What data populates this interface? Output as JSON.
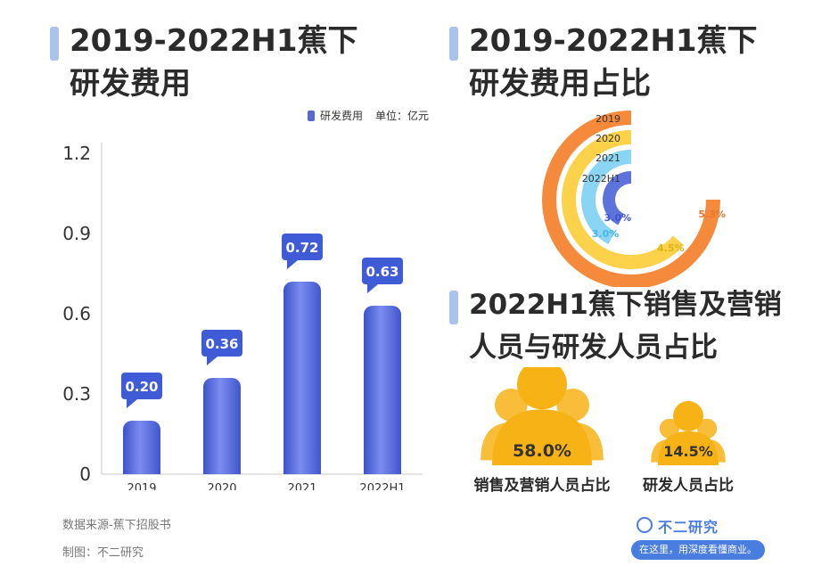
{
  "titles": {
    "left_line1": "2019-2022H1蕉下",
    "left_line2": "研发费用",
    "ring_line1": "2019-2022H1蕉下",
    "ring_line2": "研发费用占比",
    "people_line1": "2022H1蕉下销售及营销",
    "people_line2": "人员与研发人员占比"
  },
  "legend": {
    "series_name": "研发费用",
    "unit": "单位：亿元"
  },
  "bar_chart": {
    "type": "bar",
    "categories": [
      "2019",
      "2020",
      "2021",
      "2022H1"
    ],
    "series": [
      {
        "name": "研发费用",
        "values": [
          0.2,
          0.36,
          0.72,
          0.63
        ]
      }
    ],
    "data_labels": [
      "0.20",
      "0.36",
      "0.72",
      "0.63"
    ],
    "y_ticks": [
      "0",
      "0.3",
      "0.6",
      "0.9",
      "1.2"
    ],
    "ylim": [
      0,
      1.2
    ],
    "bar_color": "#5468d8",
    "label_color": "#3f5bd6"
  },
  "chart_data": [
    {
      "type": "bar",
      "categories": [
        "2019",
        "2020",
        "2021",
        "2022H1"
      ],
      "series": [
        {
          "name": "研发费用",
          "values": [
            0.2,
            0.36,
            0.72,
            0.63
          ]
        }
      ],
      "xlabel": "",
      "ylabel": "",
      "ylim": [
        0,
        1.2
      ],
      "legend": "top-right"
    },
    {
      "type": "pie",
      "categories": [
        "2019",
        "2020",
        "2021",
        "2022H1"
      ],
      "values": [
        5.3,
        4.5,
        3.0,
        3.0
      ],
      "value_labels": [
        "5.3%",
        "4.5%",
        "3.0%",
        "3.0%"
      ]
    },
    {
      "type": "bar",
      "categories": [
        "销售及营销人员占比",
        "研发人员占比"
      ],
      "values": [
        58.0,
        14.5
      ],
      "value_labels": [
        "58.0%",
        "14.5%"
      ]
    }
  ],
  "ring_chart": {
    "labels": [
      "2019",
      "2020",
      "2021",
      "2022H1"
    ],
    "values": [
      5.3,
      4.5,
      3.0,
      3.0
    ],
    "value_labels": [
      "5.3%",
      "4.5%",
      "3.0%",
      "3.0%"
    ],
    "colors": [
      "#f58a3c",
      "#fbd24a",
      "#8ad4f4",
      "#5e72dc"
    ],
    "label_colors": [
      "#e8772a",
      "#e0b319",
      "#49b6e6",
      "#3f58cf"
    ]
  },
  "people": {
    "items": [
      {
        "label": "销售及营销人员占比",
        "value": "58.0%"
      },
      {
        "label": "研发人员占比",
        "value": "14.5%"
      }
    ],
    "color": "#f7b316"
  },
  "footer": {
    "source": "数据来源-蕉下招股书",
    "maker": "制图：不二研究"
  },
  "logo": {
    "name": "不二研究",
    "slogan": "在这里，用深度看懂商业。"
  }
}
